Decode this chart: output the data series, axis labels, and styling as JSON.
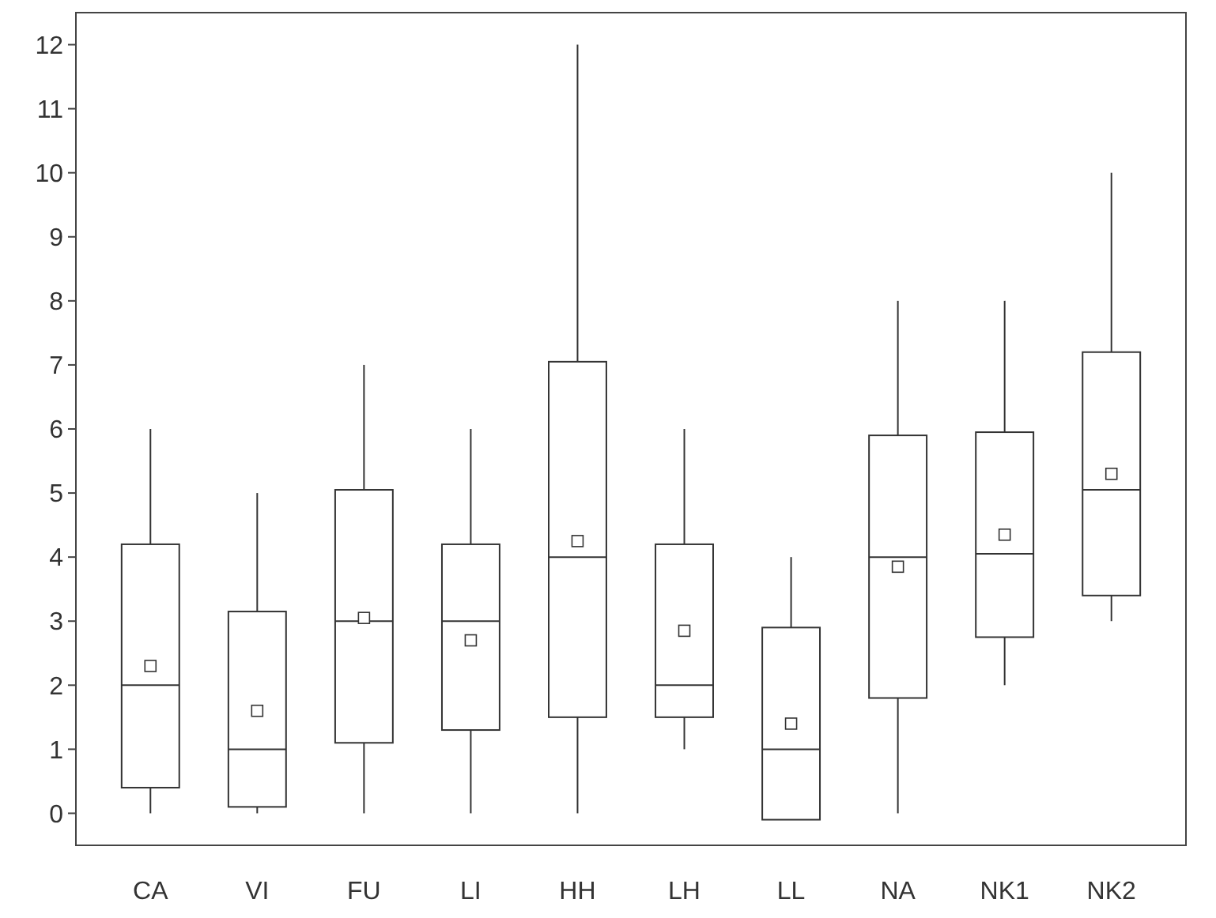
{
  "chart_data": {
    "type": "box",
    "categories": [
      "CA",
      "VI",
      "FU",
      "LI",
      "HH",
      "LH",
      "LL",
      "NA",
      "NK1",
      "NK2"
    ],
    "ylim": [
      -0.5,
      12.5
    ],
    "yticks": [
      0,
      1,
      2,
      3,
      4,
      5,
      6,
      7,
      8,
      9,
      10,
      11,
      12
    ],
    "color": "#333333",
    "grid": false,
    "boxes": [
      {
        "low": 0,
        "q1": 0.4,
        "median": 2,
        "q3": 4.2,
        "high": 6,
        "mean": 2.3
      },
      {
        "low": 0,
        "q1": 0.1,
        "median": 1,
        "q3": 3.15,
        "high": 5,
        "mean": 1.6
      },
      {
        "low": 0,
        "q1": 1.1,
        "median": 3,
        "q3": 5.05,
        "high": 7,
        "mean": 3.05
      },
      {
        "low": 0,
        "q1": 1.3,
        "median": 3,
        "q3": 4.2,
        "high": 6,
        "mean": 2.7
      },
      {
        "low": 0,
        "q1": 1.5,
        "median": 4,
        "q3": 7.05,
        "high": 12,
        "mean": 4.25
      },
      {
        "low": 1,
        "q1": 1.5,
        "median": 2,
        "q3": 4.2,
        "high": 6,
        "mean": 2.85
      },
      {
        "low": 0,
        "q1": -0.1,
        "median": 1,
        "q3": 2.9,
        "high": 4,
        "mean": 1.4
      },
      {
        "low": 0,
        "q1": 1.8,
        "median": 4,
        "q3": 5.9,
        "high": 8,
        "mean": 3.85
      },
      {
        "low": 2,
        "q1": 2.75,
        "median": 4.05,
        "q3": 5.95,
        "high": 8,
        "mean": 4.35
      },
      {
        "low": 3,
        "q1": 3.4,
        "median": 5.05,
        "q3": 7.2,
        "high": 10,
        "mean": 5.3
      }
    ]
  }
}
